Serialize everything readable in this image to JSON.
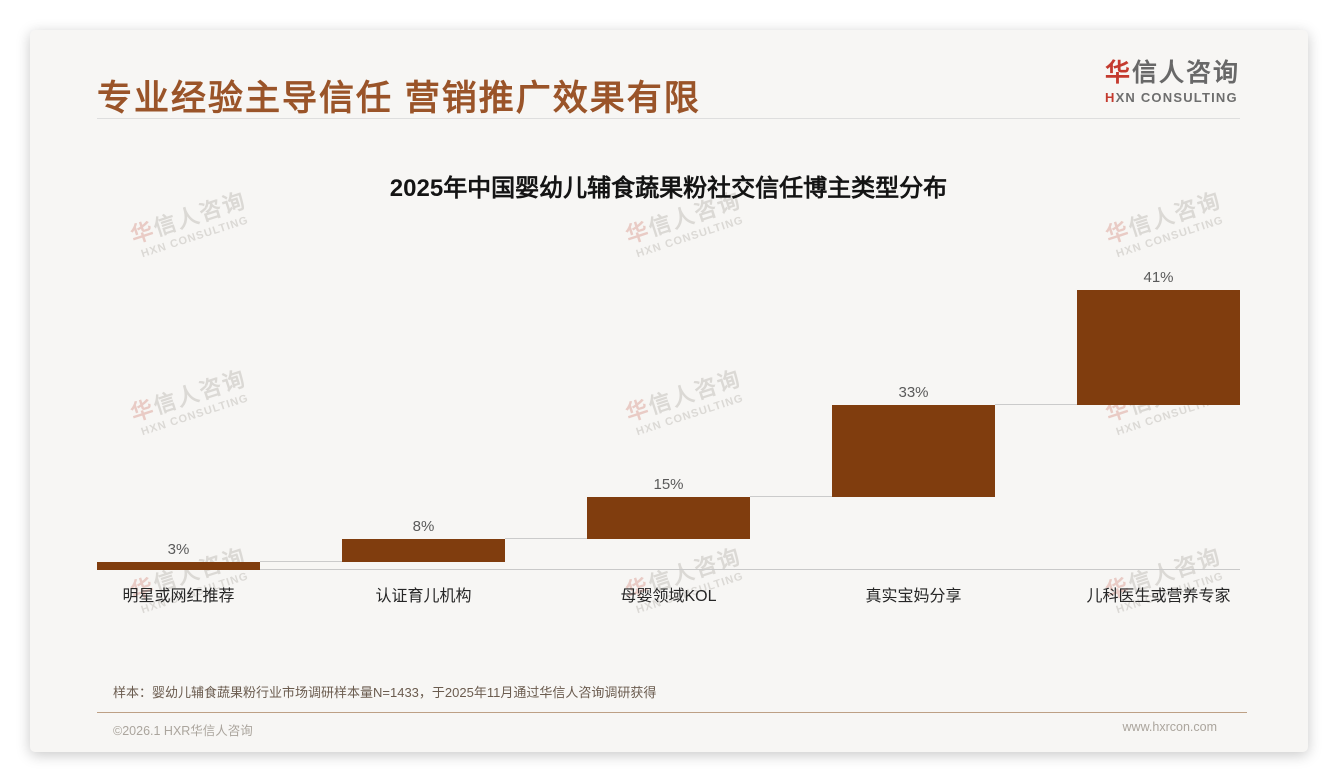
{
  "page": {
    "title": "专业经验主导信任 营销推广效果有限",
    "logo": {
      "cn_accent": "华",
      "cn_rest": "信人咨询",
      "en_accent": "H",
      "en_rest": "XN CONSULTING"
    },
    "watermark": {
      "cn_accent": "华",
      "cn_rest": "信人咨询",
      "en": "HXN CONSULTING"
    },
    "footnote": "样本：婴幼儿辅食蔬果粉行业市场调研样本量N=1433，于2025年11月通过华信人咨询调研获得",
    "footer_left": "©2026.1 HXR华信人咨询",
    "footer_right": "www.hxrcon.com"
  },
  "colors": {
    "title_brown": "#9a5429",
    "bar_brown": "#803d0e",
    "logo_red": "#c43a2e",
    "footer_divider_tan": "#bda085",
    "connector_gray": "#cbcbcb",
    "card_background": "#f7f6f4"
  },
  "chart_data": {
    "type": "bar",
    "subtype": "waterfall-cumulative",
    "title": "2025年中国婴幼儿辅食蔬果粉社交信任博主类型分布",
    "categories": [
      "明星或网红推荐",
      "认证育儿机构",
      "母婴领域KOL",
      "真实宝妈分享",
      "儿科医生或营养专家"
    ],
    "values": [
      3,
      8,
      15,
      33,
      41
    ],
    "value_labels": [
      "3%",
      "8%",
      "15%",
      "33%",
      "41%"
    ],
    "cumulative_levels": [
      3,
      11,
      26,
      59,
      100
    ],
    "xlabel": "",
    "ylabel": "",
    "ylim": [
      0,
      100
    ],
    "grid": false,
    "legend": "none",
    "bar_color": "#803d0e"
  }
}
